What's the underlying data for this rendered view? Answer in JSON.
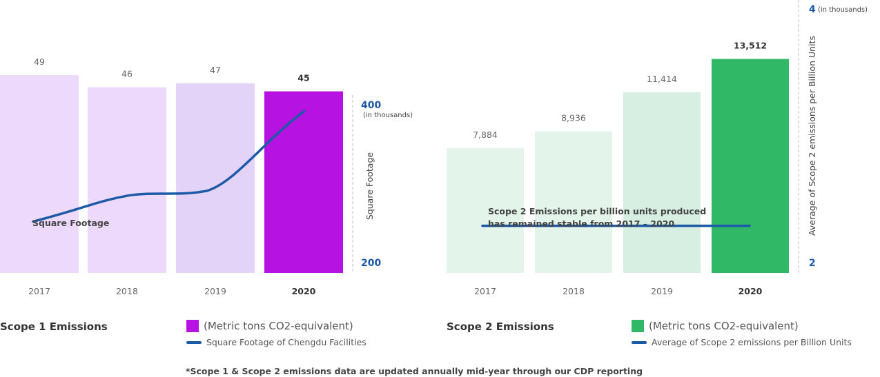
{
  "colors": {
    "scope1_faded": "#ecd9fb",
    "scope1_faded_2019": "#e3d3f8",
    "scope1_highlight": "#b612e1",
    "scope2_faded": "#e3f4ea",
    "scope2_faded_2019": "#d7efe2",
    "scope2_highlight": "#31b866",
    "line": "#1c5aa8",
    "axis_value": "#1c5aa8"
  },
  "chart_data": [
    {
      "type": "bar",
      "name": "Scope 1 Emissions",
      "categories": [
        "2017",
        "2018",
        "2019",
        "2020"
      ],
      "highlight_category": "2020",
      "series": [
        {
          "name": "(Metric tons CO2-equivalent)",
          "type": "bar",
          "values": [
            49,
            46,
            47,
            45
          ],
          "labels": [
            "49",
            "46",
            "47",
            "45"
          ]
        },
        {
          "name": "Square Footage of Chengdu Facilities",
          "type": "line",
          "axis": "right",
          "values": [
            252,
            285,
            291,
            392
          ]
        }
      ],
      "line_annotation": "Square Footage",
      "right_axis": {
        "label": "Square Footage",
        "ticks": [
          "200",
          "400"
        ],
        "tick_values": [
          200,
          400
        ],
        "unit_note": "(in thousands)"
      },
      "ylim_bars": [
        0,
        62
      ],
      "legend": {
        "title": "Scope 1 Emissions",
        "bar_label": "(Metric tons CO2-equivalent)",
        "line_label": "Square Footage of Chengdu Facilities"
      }
    },
    {
      "type": "bar",
      "name": "Scope 2 Emissions",
      "categories": [
        "2017",
        "2018",
        "2019",
        "2020"
      ],
      "highlight_category": "2020",
      "series": [
        {
          "name": "(Metric tons CO2-equivalent)",
          "type": "bar",
          "values": [
            7884,
            8936,
            11414,
            13512
          ],
          "labels": [
            "7,884",
            "8,936",
            "11,414",
            "13,512"
          ]
        },
        {
          "name": "Average of Scope 2 emissions per Billion Units",
          "type": "line",
          "axis": "right",
          "values": [
            2.29,
            2.29,
            2.29,
            2.29
          ]
        }
      ],
      "line_annotation": [
        "Scope 2 Emissions per billion units produced",
        "has remained stable from 2017 – 2020"
      ],
      "right_axis": {
        "label": "Average of Scope 2 emissions per Billion Units",
        "ticks": [
          "2",
          "4"
        ],
        "tick_values": [
          2,
          4
        ],
        "unit_note": "(in thousands)"
      },
      "ylim_bars": [
        0,
        15800
      ],
      "legend": {
        "title": "Scope 2 Emissions",
        "bar_label": "(Metric tons CO2-equivalent)",
        "line_label": "Average of Scope 2 emissions per Billion Units"
      }
    }
  ],
  "footnote": "*Scope 1 & Scope 2 emissions data are updated annually mid-year through our CDP reporting"
}
